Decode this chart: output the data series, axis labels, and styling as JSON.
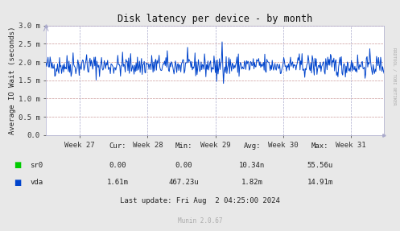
{
  "title": "Disk latency per device - by month",
  "ylabel": "Average IO Wait (seconds)",
  "background_color": "#e8e8e8",
  "plot_bg_color": "#ffffff",
  "line_color": "#0044cc",
  "sr0_color": "#00cc00",
  "ylim": [
    0.0,
    0.003
  ],
  "yticks": [
    0.0,
    0.0005,
    0.001,
    0.0015,
    0.002,
    0.0025,
    0.003
  ],
  "ytick_labels": [
    "0.0",
    "0.5 m",
    "1.0 m",
    "1.5 m",
    "2.0 m",
    "2.5 m",
    "3.0 m"
  ],
  "week_labels": [
    "Week 27",
    "Week 28",
    "Week 29",
    "Week 30",
    "Week 31"
  ],
  "table_headers": [
    "Cur:",
    "Min:",
    "Avg:",
    "Max:"
  ],
  "table_sr0": [
    "0.00",
    "0.00",
    "10.34n",
    "55.56u"
  ],
  "table_vda": [
    "1.61m",
    "467.23u",
    "1.82m",
    "14.91m"
  ],
  "last_update": "Last update: Fri Aug  2 04:25:00 2024",
  "munin_version": "Munin 2.0.67",
  "rrdtool_label": "RRDTOOL / TOBI OETIKER",
  "seed": 42,
  "n_points": 500
}
